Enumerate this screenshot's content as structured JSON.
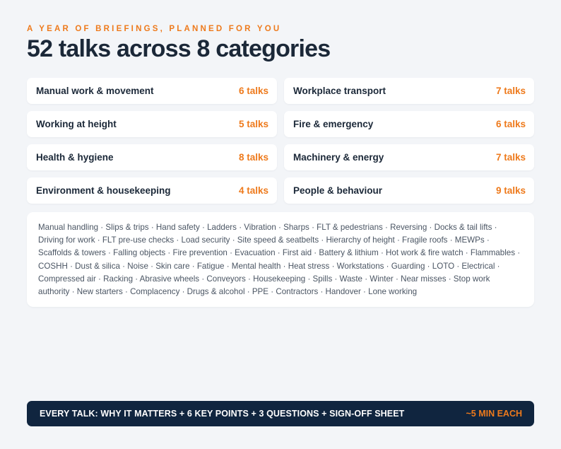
{
  "eyebrow": "A YEAR OF BRIEFINGS, PLANNED FOR YOU",
  "headline": "52 talks across 8 categories",
  "categories": [
    {
      "name": "Manual work & movement",
      "count": "6 talks"
    },
    {
      "name": "Workplace transport",
      "count": "7 talks"
    },
    {
      "name": "Working at height",
      "count": "5 talks"
    },
    {
      "name": "Fire & emergency",
      "count": "6 talks"
    },
    {
      "name": "Health & hygiene",
      "count": "8 talks"
    },
    {
      "name": "Machinery & energy",
      "count": "7 talks"
    },
    {
      "name": "Environment & housekeeping",
      "count": "4 talks"
    },
    {
      "name": "People & behaviour",
      "count": "9 talks"
    }
  ],
  "topics": "Manual handling · Slips & trips · Hand safety · Ladders · Vibration · Sharps · FLT & pedestrians · Reversing · Docks & tail lifts · Driving for work · FLT pre-use checks · Load security · Site speed & seatbelts · Hierarchy of height · Fragile roofs · MEWPs · Scaffolds & towers · Falling objects · Fire prevention · Evacuation · First aid · Battery & lithium · Hot work & fire watch · Flammables · COSHH · Dust & silica · Noise · Skin care · Fatigue · Mental health · Heat stress · Workstations · Guarding · LOTO · Electrical · Compressed air · Racking · Abrasive wheels · Conveyors · Housekeeping · Spills · Waste · Winter · Near misses · Stop work authority · New starters · Complacency · Drugs & alcohol · PPE · Contractors · Handover · Lone working",
  "footer": {
    "text": "EVERY TALK: WHY IT MATTERS + 6 KEY POINTS + 3 QUESTIONS + SIGN-OFF SHEET",
    "tag": "~5 MIN EACH"
  },
  "colors": {
    "accent": "#ee7a1c",
    "navy": "#10253f",
    "background": "#f3f5f8"
  }
}
